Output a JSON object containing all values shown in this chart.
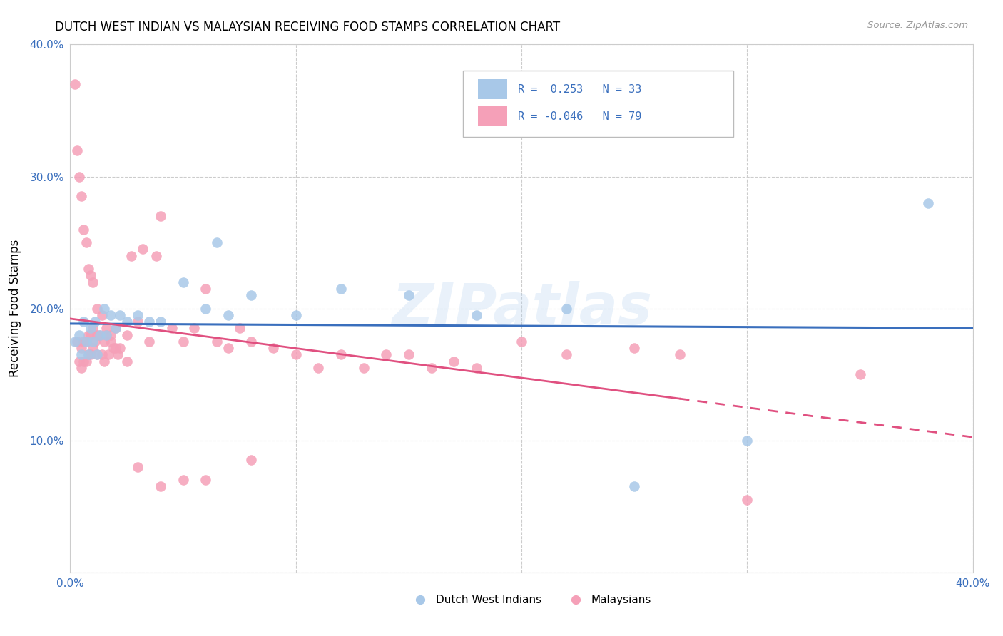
{
  "title": "DUTCH WEST INDIAN VS MALAYSIAN RECEIVING FOOD STAMPS CORRELATION CHART",
  "source": "Source: ZipAtlas.com",
  "ylabel": "Receiving Food Stamps",
  "xlim": [
    0.0,
    0.4
  ],
  "ylim": [
    0.0,
    0.4
  ],
  "color_blue": "#a8c8e8",
  "color_pink": "#f5a0b8",
  "line_blue": "#3a6fbd",
  "line_pink": "#e05080",
  "watermark": "ZIPatlas",
  "dutch_x": [
    0.002,
    0.004,
    0.005,
    0.006,
    0.007,
    0.008,
    0.009,
    0.01,
    0.011,
    0.012,
    0.013,
    0.015,
    0.016,
    0.018,
    0.02,
    0.022,
    0.025,
    0.03,
    0.035,
    0.04,
    0.05,
    0.06,
    0.065,
    0.07,
    0.08,
    0.1,
    0.12,
    0.15,
    0.18,
    0.22,
    0.25,
    0.3,
    0.38
  ],
  "dutch_y": [
    0.175,
    0.18,
    0.165,
    0.19,
    0.175,
    0.165,
    0.185,
    0.175,
    0.19,
    0.165,
    0.18,
    0.2,
    0.18,
    0.195,
    0.185,
    0.195,
    0.19,
    0.195,
    0.19,
    0.19,
    0.22,
    0.2,
    0.25,
    0.195,
    0.21,
    0.195,
    0.215,
    0.21,
    0.195,
    0.2,
    0.065,
    0.1,
    0.28
  ],
  "malay_x": [
    0.002,
    0.003,
    0.004,
    0.005,
    0.005,
    0.006,
    0.006,
    0.007,
    0.007,
    0.008,
    0.008,
    0.009,
    0.009,
    0.01,
    0.01,
    0.011,
    0.012,
    0.012,
    0.013,
    0.014,
    0.015,
    0.015,
    0.016,
    0.017,
    0.018,
    0.019,
    0.02,
    0.021,
    0.022,
    0.025,
    0.027,
    0.03,
    0.032,
    0.035,
    0.038,
    0.04,
    0.045,
    0.05,
    0.055,
    0.06,
    0.065,
    0.07,
    0.075,
    0.08,
    0.09,
    0.1,
    0.11,
    0.12,
    0.13,
    0.14,
    0.15,
    0.16,
    0.17,
    0.18,
    0.2,
    0.22,
    0.25,
    0.27,
    0.3,
    0.35,
    0.003,
    0.004,
    0.005,
    0.006,
    0.007,
    0.008,
    0.009,
    0.01,
    0.012,
    0.014,
    0.016,
    0.018,
    0.02,
    0.025,
    0.03,
    0.04,
    0.05,
    0.06,
    0.08
  ],
  "malay_y": [
    0.37,
    0.175,
    0.16,
    0.17,
    0.155,
    0.175,
    0.16,
    0.175,
    0.16,
    0.18,
    0.165,
    0.18,
    0.165,
    0.185,
    0.17,
    0.175,
    0.18,
    0.165,
    0.18,
    0.165,
    0.175,
    0.16,
    0.18,
    0.165,
    0.175,
    0.17,
    0.185,
    0.165,
    0.17,
    0.18,
    0.24,
    0.19,
    0.245,
    0.175,
    0.24,
    0.27,
    0.185,
    0.175,
    0.185,
    0.215,
    0.175,
    0.17,
    0.185,
    0.175,
    0.17,
    0.165,
    0.155,
    0.165,
    0.155,
    0.165,
    0.165,
    0.155,
    0.16,
    0.155,
    0.175,
    0.165,
    0.17,
    0.165,
    0.055,
    0.15,
    0.32,
    0.3,
    0.285,
    0.26,
    0.25,
    0.23,
    0.225,
    0.22,
    0.2,
    0.195,
    0.185,
    0.18,
    0.17,
    0.16,
    0.08,
    0.065,
    0.07,
    0.07,
    0.085
  ]
}
